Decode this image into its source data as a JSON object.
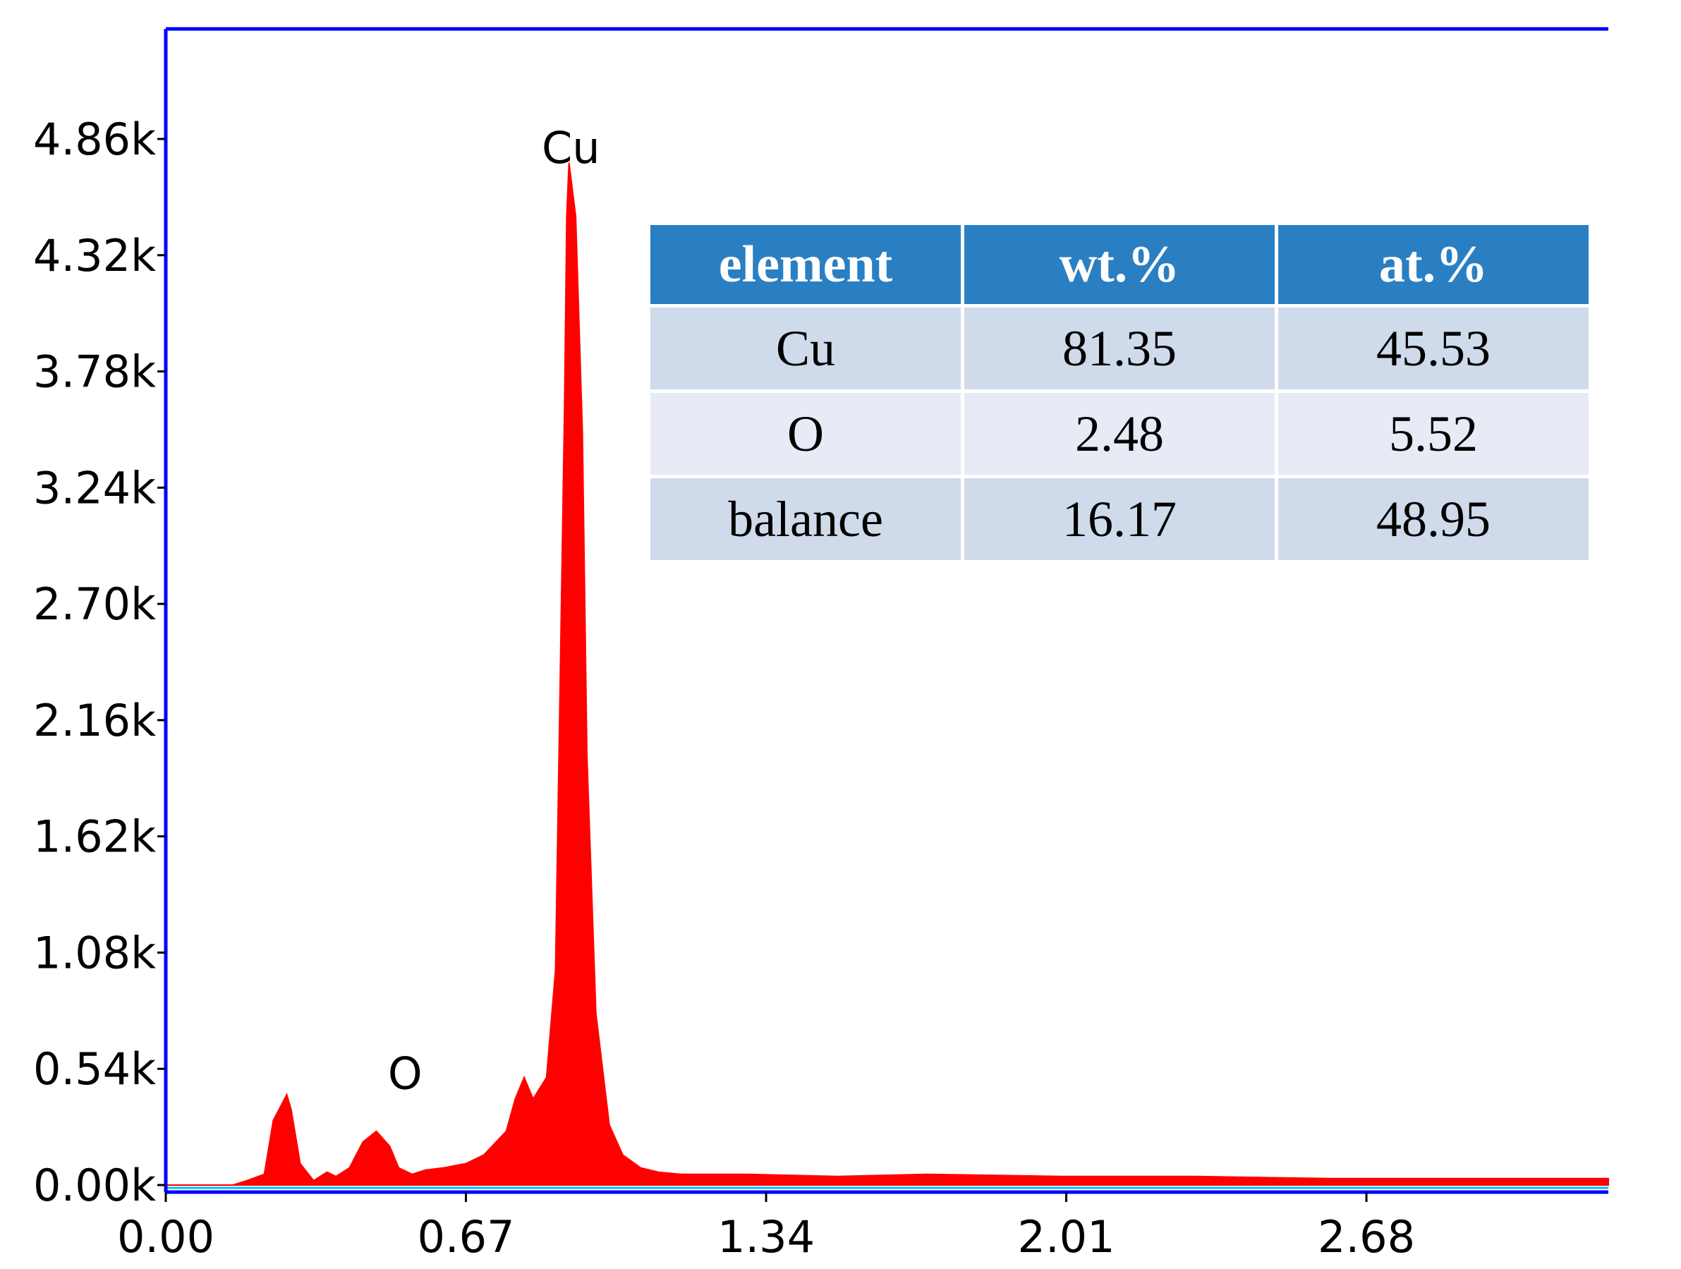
{
  "chart_data": {
    "type": "area",
    "title": "",
    "xlabel": "",
    "ylabel": "",
    "xlim": [
      0.0,
      3.22
    ],
    "ylim": [
      0.0,
      5.3
    ],
    "x_ticks": [
      0.0,
      0.67,
      1.34,
      2.01,
      2.68
    ],
    "x_tick_labels": [
      "0.00",
      "0.67",
      "1.34",
      "2.01",
      "2.68"
    ],
    "y_ticks": [
      0.0,
      0.54,
      1.08,
      1.62,
      2.16,
      2.7,
      3.24,
      3.78,
      4.32,
      4.86
    ],
    "y_tick_labels": [
      "0.00k",
      "0.54k",
      "1.08k",
      "1.62k",
      "2.16k",
      "2.70k",
      "3.24k",
      "3.78k",
      "4.32k",
      "4.86k"
    ],
    "series": [
      {
        "color": "#ff0000",
        "x": [
          0.0,
          0.15,
          0.18,
          0.22,
          0.24,
          0.27,
          0.28,
          0.3,
          0.33,
          0.36,
          0.38,
          0.41,
          0.44,
          0.47,
          0.5,
          0.52,
          0.55,
          0.58,
          0.62,
          0.67,
          0.71,
          0.76,
          0.78,
          0.8,
          0.81,
          0.82,
          0.85,
          0.87,
          0.88,
          0.89,
          0.895,
          0.9,
          0.915,
          0.93,
          0.94,
          0.96,
          0.99,
          1.02,
          1.06,
          1.1,
          1.15,
          1.3,
          1.5,
          1.7,
          2.0,
          2.3,
          2.6,
          2.9,
          3.22
        ],
        "y": [
          0.0,
          0.0,
          0.02,
          0.05,
          0.3,
          0.42,
          0.35,
          0.1,
          0.02,
          0.06,
          0.04,
          0.08,
          0.2,
          0.25,
          0.18,
          0.08,
          0.05,
          0.07,
          0.08,
          0.1,
          0.14,
          0.25,
          0.4,
          0.5,
          0.45,
          0.4,
          0.5,
          1.0,
          2.3,
          3.6,
          4.5,
          4.75,
          4.5,
          3.5,
          2.0,
          0.8,
          0.28,
          0.14,
          0.08,
          0.06,
          0.05,
          0.05,
          0.04,
          0.05,
          0.04,
          0.04,
          0.03,
          0.03,
          0.03
        ]
      }
    ],
    "annotations": [
      {
        "text": "Cu",
        "x": 0.92,
        "y": 4.82
      },
      {
        "text": "O",
        "x": 0.55,
        "y": 0.52
      }
    ],
    "grid": false,
    "legend": "none"
  },
  "table": {
    "headers": [
      "element",
      "wt.%",
      "at.%"
    ],
    "rows": [
      [
        "Cu",
        "81.35",
        "45.53"
      ],
      [
        "O",
        "2.48",
        "5.52"
      ],
      [
        "balance",
        "16.17",
        "48.95"
      ]
    ]
  },
  "colors": {
    "axis": "#0000ff",
    "series": "#ff0000",
    "baseline": "#00bfff",
    "table_header": "#2a7fc2",
    "table_row_odd": "#cfdaea",
    "table_row_even": "#e6ebf5"
  }
}
